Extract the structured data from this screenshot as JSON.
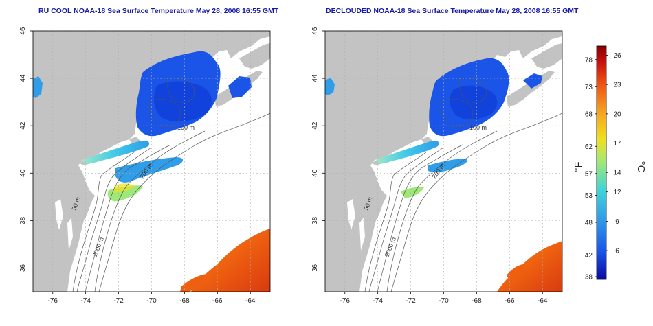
{
  "panels": [
    {
      "title": "RU COOL NOAA-18 Sea Surface Temperature May 28, 2008 16:55 GMT"
    },
    {
      "title": "DECLOUDED NOAA-18 Sea Surface Temperature May 28, 2008 16:55 GMT"
    }
  ],
  "axes": {
    "lon_ticks": [
      "-76",
      "-74",
      "-72",
      "-70",
      "-68",
      "-66",
      "-64"
    ],
    "lat_ticks": [
      "36",
      "38",
      "40",
      "42",
      "44",
      "46"
    ],
    "lon_range": [
      -77.2,
      -62.8
    ],
    "lat_range": [
      35.0,
      46.0
    ]
  },
  "contour_labels": [
    "50 m",
    "100 m",
    "200 m",
    "2000 m"
  ],
  "colorbar": {
    "fahrenheit_ticks": [
      "78",
      "73",
      "68",
      "62",
      "57",
      "53",
      "48",
      "42",
      "38"
    ],
    "celsius_ticks": [
      "26",
      "23",
      "20",
      "17",
      "14",
      "12",
      "9",
      "6"
    ],
    "fahrenheit_unit": "°F",
    "celsius_unit": "°C",
    "colors": [
      "#0a0aa0",
      "#1a55e8",
      "#2f9de8",
      "#3ed4d8",
      "#9ee87a",
      "#f0e020",
      "#f6a020",
      "#ee5010",
      "#c81010",
      "#8a0000"
    ]
  },
  "colors": {
    "land": "#c3c3c3",
    "ocean": "#ffffff",
    "grid": "#b0b0b0",
    "title": "#1a1aa6"
  }
}
